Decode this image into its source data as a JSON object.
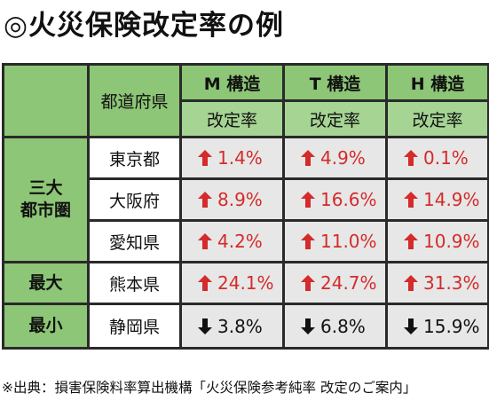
{
  "title": "◎火災保険改定率の例",
  "table": {
    "prefecture_header": "都道府県",
    "columns": [
      {
        "name": "M 構造",
        "sub": "改定率"
      },
      {
        "name": "T 構造",
        "sub": "改定率"
      },
      {
        "name": "H 構造",
        "sub": "改定率"
      }
    ],
    "groups": [
      {
        "label": "三大\n都市圏"
      },
      {
        "label": "最大"
      },
      {
        "label": "最小"
      }
    ],
    "rows": [
      {
        "prefecture": "東京都",
        "values": [
          {
            "dir": "up",
            "text": "1.4%"
          },
          {
            "dir": "up",
            "text": "4.9%"
          },
          {
            "dir": "up",
            "text": "0.1%"
          }
        ]
      },
      {
        "prefecture": "大阪府",
        "values": [
          {
            "dir": "up",
            "text": "8.9%"
          },
          {
            "dir": "up",
            "text": "16.6%"
          },
          {
            "dir": "up",
            "text": "14.9%"
          }
        ]
      },
      {
        "prefecture": "愛知県",
        "values": [
          {
            "dir": "up",
            "text": "4.2%"
          },
          {
            "dir": "up",
            "text": "11.0%"
          },
          {
            "dir": "up",
            "text": "10.9%"
          }
        ]
      },
      {
        "prefecture": "熊本県",
        "values": [
          {
            "dir": "up",
            "text": "24.1%"
          },
          {
            "dir": "up",
            "text": "24.7%"
          },
          {
            "dir": "up",
            "text": "31.3%"
          }
        ]
      },
      {
        "prefecture": "静岡県",
        "values": [
          {
            "dir": "down",
            "text": "3.8%"
          },
          {
            "dir": "down",
            "text": "6.8%"
          },
          {
            "dir": "down",
            "text": "15.9%"
          }
        ]
      }
    ]
  },
  "source": "※出典：損害保険料率算出機構「火災保険参考純率 改定のご案内」",
  "colors": {
    "header_green": "#8dc676",
    "up_arrow": "#d42b2b",
    "down_arrow": "#111111",
    "value_bg": "#e7e7e7"
  },
  "icons": {
    "up": "up-arrow-icon",
    "down": "down-arrow-icon"
  }
}
